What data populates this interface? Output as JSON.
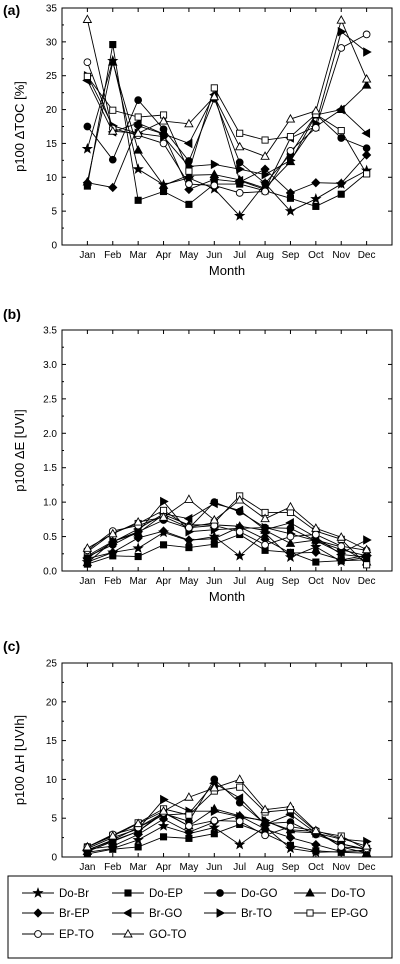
{
  "chart_data": [
    {
      "type": "line",
      "panel_label": "(a)",
      "ylabel": "p100 ΔTOC [%]",
      "xlabel": "Month",
      "ylim": [
        0,
        35
      ],
      "yticks": [
        0,
        5,
        10,
        15,
        20,
        25,
        30,
        35
      ],
      "categories": [
        "Jan",
        "Feb",
        "Mar",
        "Apr",
        "May",
        "Jun",
        "Jul",
        "Aug",
        "Sep",
        "Oct",
        "Nov",
        "Dec"
      ],
      "series": [
        {
          "name": "Do-Br",
          "values": [
            14.2,
            27.2,
            11.2,
            8.9,
            9.9,
            8.3,
            4.3,
            9.1,
            5.0,
            6.8,
            9.0,
            11.0
          ]
        },
        {
          "name": "Do-EP",
          "values": [
            8.7,
            29.6,
            6.6,
            7.9,
            6.0,
            9.0,
            9.0,
            8.0,
            6.9,
            5.7,
            7.5,
            10.6
          ]
        },
        {
          "name": "Do-GO",
          "values": [
            17.5,
            12.6,
            21.4,
            17.1,
            12.4,
            21.6,
            12.2,
            9.1,
            13.4,
            19.3,
            15.8,
            14.3
          ]
        },
        {
          "name": "Do-TO",
          "values": [
            9.3,
            27.0,
            14.0,
            8.8,
            10.3,
            10.4,
            9.6,
            8.4,
            12.3,
            19.2,
            20.0,
            23.6
          ]
        },
        {
          "name": "Br-EP",
          "values": [
            9.2,
            8.5,
            17.6,
            16.4,
            8.2,
            9.7,
            9.3,
            11.2,
            7.7,
            9.2,
            9.1,
            13.3
          ]
        },
        {
          "name": "Br-GO",
          "values": [
            24.3,
            16.7,
            18.0,
            16.4,
            15.0,
            22.2,
            9.5,
            8.2,
            15.8,
            17.5,
            20.0,
            16.5
          ]
        },
        {
          "name": "Br-TO",
          "values": [
            25.0,
            17.6,
            16.5,
            16.0,
            11.6,
            11.9,
            11.2,
            10.4,
            12.5,
            17.9,
            31.5,
            28.5
          ]
        },
        {
          "name": "EP-GO",
          "values": [
            24.9,
            19.9,
            18.9,
            19.2,
            10.9,
            23.2,
            16.5,
            15.5,
            16.0,
            19.3,
            16.9,
            10.5
          ]
        },
        {
          "name": "EP-TO",
          "values": [
            27.0,
            17.2,
            16.2,
            15.0,
            9.0,
            8.8,
            7.7,
            7.9,
            13.9,
            17.3,
            29.1,
            31.1
          ]
        },
        {
          "name": "GO-TO",
          "values": [
            33.3,
            16.8,
            16.5,
            18.3,
            17.9,
            21.9,
            14.5,
            13.1,
            18.6,
            19.8,
            33.2,
            24.5
          ]
        }
      ]
    },
    {
      "type": "line",
      "panel_label": "(b)",
      "ylabel": "p100 ΔE [UVI]",
      "xlabel": "Month",
      "ylim": [
        0,
        3.5
      ],
      "yticks": [
        0.0,
        0.5,
        1.0,
        1.5,
        2.0,
        2.5,
        3.0,
        3.5
      ],
      "categories": [
        "Jan",
        "Feb",
        "Mar",
        "Apr",
        "May",
        "Jun",
        "Jul",
        "Aug",
        "Sep",
        "Oct",
        "Nov",
        "Dec"
      ],
      "series": [
        {
          "name": "Do-Br",
          "values": [
            0.13,
            0.27,
            0.33,
            0.56,
            0.44,
            0.5,
            0.22,
            0.55,
            0.2,
            0.35,
            0.14,
            0.2
          ]
        },
        {
          "name": "Do-EP",
          "values": [
            0.1,
            0.22,
            0.21,
            0.38,
            0.34,
            0.39,
            0.53,
            0.3,
            0.27,
            0.13,
            0.15,
            0.16
          ]
        },
        {
          "name": "Do-GO",
          "values": [
            0.21,
            0.38,
            0.57,
            0.74,
            0.62,
            1.0,
            0.86,
            0.63,
            0.62,
            0.44,
            0.31,
            0.22
          ]
        },
        {
          "name": "Do-TO",
          "values": [
            0.12,
            0.43,
            0.55,
            0.82,
            0.67,
            0.67,
            0.65,
            0.59,
            0.4,
            0.45,
            0.35,
            0.13
          ]
        },
        {
          "name": "Br-EP",
          "values": [
            0.18,
            0.27,
            0.48,
            0.58,
            0.45,
            0.47,
            0.64,
            0.46,
            0.26,
            0.27,
            0.16,
            0.23
          ]
        },
        {
          "name": "Br-GO",
          "values": [
            0.19,
            0.42,
            0.61,
            0.83,
            0.76,
            0.98,
            0.88,
            0.6,
            0.7,
            0.49,
            0.24,
            0.2
          ]
        },
        {
          "name": "Br-TO",
          "values": [
            0.22,
            0.43,
            0.57,
            1.01,
            0.57,
            0.6,
            0.62,
            0.63,
            0.54,
            0.44,
            0.26,
            0.45
          ]
        },
        {
          "name": "EP-GO",
          "values": [
            0.28,
            0.55,
            0.69,
            0.88,
            0.64,
            0.7,
            1.09,
            0.85,
            0.85,
            0.58,
            0.46,
            0.09
          ]
        },
        {
          "name": "EP-TO",
          "values": [
            0.3,
            0.58,
            0.66,
            0.79,
            0.63,
            0.66,
            0.57,
            0.38,
            0.5,
            0.53,
            0.36,
            0.3
          ]
        },
        {
          "name": "GO-TO",
          "values": [
            0.33,
            0.54,
            0.71,
            0.78,
            1.04,
            0.74,
            1.03,
            0.76,
            0.93,
            0.62,
            0.49,
            0.31
          ]
        }
      ]
    },
    {
      "type": "line",
      "panel_label": "(c)",
      "ylabel": "p100 ΔH [UVIh]",
      "xlabel": "Month",
      "ylim": [
        0,
        25
      ],
      "yticks": [
        0,
        5,
        10,
        15,
        20,
        25
      ],
      "categories": [
        "Jan",
        "Feb",
        "Mar",
        "Apr",
        "May",
        "Jun",
        "Jul",
        "Aug",
        "Sep",
        "Oct",
        "Nov",
        "Dec"
      ],
      "series": [
        {
          "name": "Do-Br",
          "values": [
            0.6,
            1.1,
            2.2,
            4.0,
            3.0,
            3.8,
            1.6,
            3.9,
            1.1,
            0.6,
            0.7,
            0.9
          ]
        },
        {
          "name": "Do-EP",
          "values": [
            0.4,
            1.0,
            1.3,
            2.6,
            2.4,
            3.0,
            4.2,
            3.0,
            1.5,
            0.8,
            0.6,
            0.5
          ]
        },
        {
          "name": "Do-GO",
          "values": [
            0.9,
            2.1,
            3.3,
            5.6,
            4.6,
            10.0,
            7.0,
            4.3,
            4.5,
            2.9,
            1.7,
            0.9
          ]
        },
        {
          "name": "Do-TO",
          "values": [
            0.7,
            2.0,
            3.3,
            5.8,
            4.0,
            6.2,
            5.3,
            4.6,
            3.5,
            3.3,
            1.3,
            0.5
          ]
        },
        {
          "name": "Br-EP",
          "values": [
            1.0,
            1.4,
            2.9,
            4.9,
            3.2,
            4.5,
            5.3,
            3.6,
            2.5,
            1.6,
            0.7,
            0.8
          ]
        },
        {
          "name": "Br-GO",
          "values": [
            0.9,
            2.2,
            3.8,
            5.4,
            5.6,
            9.5,
            7.6,
            4.2,
            5.5,
            3.1,
            1.7,
            1.0
          ]
        },
        {
          "name": "Br-TO",
          "values": [
            1.1,
            2.5,
            3.6,
            7.4,
            5.9,
            5.9,
            5.2,
            4.7,
            3.3,
            3.1,
            2.3,
            2.0
          ]
        },
        {
          "name": "EP-GO",
          "values": [
            1.3,
            2.8,
            4.4,
            6.2,
            5.4,
            8.5,
            9.0,
            5.8,
            6.1,
            3.3,
            2.7,
            1.0
          ]
        },
        {
          "name": "EP-TO",
          "values": [
            1.3,
            2.9,
            3.8,
            5.7,
            4.0,
            4.7,
            4.6,
            2.8,
            3.9,
            3.4,
            1.3,
            1.1
          ]
        },
        {
          "name": "GO-TO",
          "values": [
            1.3,
            2.7,
            4.3,
            5.9,
            7.7,
            8.9,
            10.0,
            6.1,
            6.5,
            3.4,
            2.4,
            1.4
          ]
        }
      ]
    }
  ],
  "legend": {
    "entries": [
      {
        "name": "Do-Br",
        "marker": "star",
        "filled": true
      },
      {
        "name": "Do-EP",
        "marker": "square",
        "filled": true
      },
      {
        "name": "Do-GO",
        "marker": "circle",
        "filled": true
      },
      {
        "name": "Do-TO",
        "marker": "triangle-up",
        "filled": true
      },
      {
        "name": "Br-EP",
        "marker": "diamond",
        "filled": true
      },
      {
        "name": "Br-GO",
        "marker": "triangle-left",
        "filled": true
      },
      {
        "name": "Br-TO",
        "marker": "triangle-right",
        "filled": true
      },
      {
        "name": "EP-GO",
        "marker": "square",
        "filled": false
      },
      {
        "name": "EP-TO",
        "marker": "circle",
        "filled": false
      },
      {
        "name": "GO-TO",
        "marker": "triangle-up",
        "filled": false
      }
    ]
  },
  "colors": {
    "line": "#000000",
    "axis": "#000000",
    "tick_label": "#000000",
    "background": "#ffffff"
  }
}
